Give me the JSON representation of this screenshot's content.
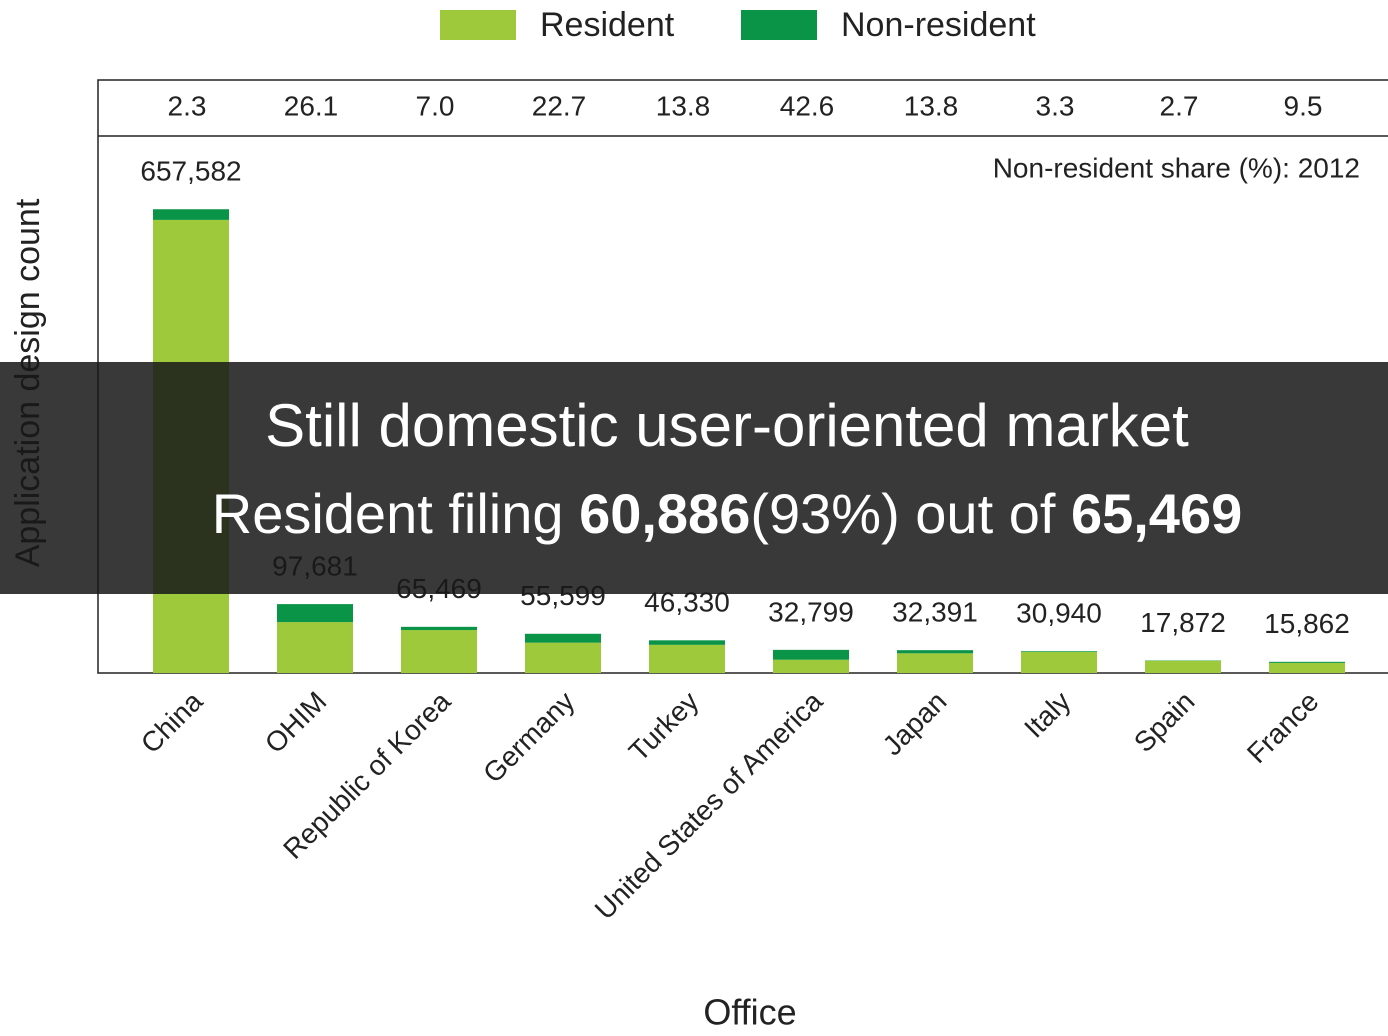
{
  "chart_data": {
    "type": "stacked_bar",
    "axis_label_y": "Application design count",
    "axis_label_x": "Office",
    "categories": [
      "China",
      "OHIM",
      "Republic of Korea",
      "Germany",
      "Turkey",
      "United States of America",
      "Japan",
      "Italy",
      "Spain",
      "France"
    ],
    "series": [
      {
        "name": "Resident",
        "color": "#9dc93b",
        "values": [
          642458,
          72186,
          60886,
          42978,
          39936,
          18827,
          27921,
          29919,
          17389,
          14355
        ]
      },
      {
        "name": "Non-resident",
        "color": "#0a9447",
        "values": [
          15124,
          25495,
          4583,
          12621,
          6394,
          13972,
          4470,
          1021,
          483,
          1507
        ]
      }
    ],
    "totals": [
      657582,
      97681,
      65469,
      55599,
      46330,
      32799,
      32391,
      30940,
      17872,
      15862
    ],
    "total_labels": [
      "657,582",
      "97,681",
      "65,469",
      "55,599",
      "46,330",
      "32,799",
      "32,391",
      "30,940",
      "17,872",
      "15,862"
    ],
    "share_title": "Non-resident share (%): 2012",
    "share_values": [
      2.3,
      26.1,
      7.0,
      22.7,
      13.8,
      42.6,
      13.8,
      3.3,
      2.7,
      9.5
    ],
    "share_labels": [
      "2.3",
      "26.1",
      "7.0",
      "22.7",
      "13.8",
      "42.6",
      "13.8",
      "3.3",
      "2.7",
      "9.5"
    ],
    "ylim": [
      0,
      760000
    ]
  },
  "overlay": {
    "line1": "Still domestic user-oriented market",
    "line2": [
      "Resident filing ",
      "60,886",
      "(93%) out of ",
      "65,469"
    ]
  }
}
